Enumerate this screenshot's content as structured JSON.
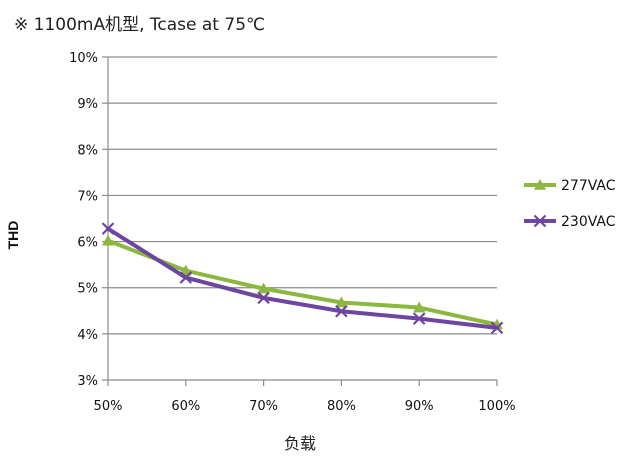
{
  "chart_data": {
    "type": "line",
    "title": "※ 1100mA机型, Tcase at 75℃",
    "xlabel": "负载",
    "ylabel": "THD",
    "categories": [
      "50%",
      "60%",
      "70%",
      "80%",
      "90%",
      "100%"
    ],
    "y_ticks": [
      "3%",
      "4%",
      "5%",
      "6%",
      "7%",
      "8%",
      "9%",
      "10%"
    ],
    "ylim": [
      3,
      10
    ],
    "grid": true,
    "legend_position": "right",
    "series": [
      {
        "name": "277VAC",
        "values": [
          6.02,
          5.37,
          4.98,
          4.68,
          4.57,
          4.2
        ],
        "color": "#8CB83F",
        "marker": "triangle"
      },
      {
        "name": "230VAC",
        "values": [
          6.28,
          5.22,
          4.78,
          4.49,
          4.33,
          4.13
        ],
        "color": "#6E45A1",
        "marker": "x"
      }
    ]
  }
}
